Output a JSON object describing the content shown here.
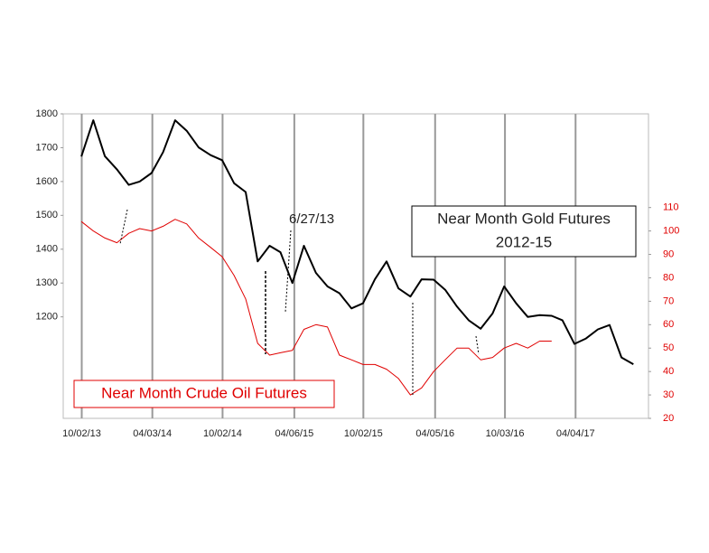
{
  "chart_data": {
    "type": "line",
    "x": [
      "2013-10-01",
      "2013-11-01",
      "2013-12-01",
      "2014-01-01",
      "2014-02-01",
      "2014-03-01",
      "2014-04-01",
      "2014-05-01",
      "2014-06-01",
      "2014-07-01",
      "2014-08-01",
      "2014-09-01",
      "2014-10-01",
      "2014-11-01",
      "2014-12-01",
      "2015-01-01",
      "2015-02-01",
      "2015-03-01",
      "2015-04-01",
      "2015-05-01",
      "2015-06-01",
      "2015-07-01",
      "2015-08-01",
      "2015-09-01",
      "2015-10-01",
      "2015-11-01",
      "2015-12-01",
      "2016-01-01",
      "2016-02-01",
      "2016-03-01",
      "2016-04-01",
      "2016-05-01",
      "2016-06-01",
      "2016-07-01",
      "2016-08-01",
      "2016-09-01",
      "2016-10-01",
      "2016-11-01",
      "2016-12-01",
      "2017-01-01",
      "2017-02-01",
      "2017-03-01",
      "2017-04-01",
      "2017-05-01",
      "2017-06-01",
      "2017-07-01",
      "2017-08-01",
      "2017-09-01"
    ],
    "series": [
      {
        "name": "Near Month Gold Futures",
        "color": "#000000",
        "values": [
          1674,
          1781,
          1675,
          1636,
          1590,
          1600,
          1625,
          1687,
          1781,
          1750,
          1701,
          1678,
          1663,
          1595,
          1569,
          1364,
          1410,
          1391,
          1300,
          1410,
          1330,
          1290,
          1270,
          1225,
          1240,
          1311,
          1364,
          1284,
          1260,
          1311,
          1310,
          1280,
          1230,
          1190,
          1165,
          1210,
          1290,
          1240,
          1200,
          1205,
          1203,
          1190,
          1120,
          1136,
          1163,
          1176,
          1080,
          1060
        ]
      },
      {
        "name": "Near Month Crude Oil Futures",
        "color": "#e00000",
        "axis": "y2",
        "values": [
          104,
          100,
          97,
          95,
          99,
          101,
          100,
          102,
          105,
          103,
          97,
          93,
          89,
          81,
          71,
          52,
          47,
          48,
          49,
          58,
          60,
          59,
          47,
          45,
          43,
          43,
          41,
          37,
          30,
          33,
          40,
          45,
          50,
          50,
          45,
          46,
          50,
          52,
          50,
          53,
          53,
          null,
          null,
          null,
          null,
          null,
          null,
          null
        ]
      }
    ],
    "xlim": [
      "2013-08-15",
      "2017-10-10"
    ],
    "xticks": [
      {
        "value": "2013-10-02",
        "label": "10/02/13"
      },
      {
        "value": "2014-04-03",
        "label": "04/03/14"
      },
      {
        "value": "2014-10-02",
        "label": "10/02/14"
      },
      {
        "value": "2015-04-06",
        "label": "04/06/15"
      },
      {
        "value": "2015-10-02",
        "label": "10/02/15"
      },
      {
        "value": "2016-04-05",
        "label": "04/05/16"
      },
      {
        "value": "2016-10-03",
        "label": "10/03/16"
      },
      {
        "value": "2017-04-04",
        "label": "04/04/17"
      }
    ],
    "ylim": [
      900,
      1800
    ],
    "yticks": [
      1200,
      1300,
      1400,
      1500,
      1600,
      1700,
      1800
    ],
    "y2lim": [
      20,
      150
    ],
    "y2ticks": [
      20,
      30,
      40,
      50,
      60,
      70,
      80,
      90,
      100,
      110
    ],
    "y2color": "#e00000",
    "annotations": [
      "6/27/13",
      "2012-15"
    ],
    "grid": "x"
  }
}
